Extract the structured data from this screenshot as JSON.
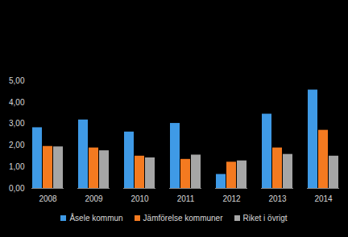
{
  "chart_data": {
    "type": "bar",
    "categories": [
      "2008",
      "2009",
      "2010",
      "2011",
      "2012",
      "2013",
      "2014"
    ],
    "series": [
      {
        "name": "Åsele kommun",
        "color": "#3f9ae6",
        "values": [
          2.82,
          3.18,
          2.62,
          3.02,
          0.65,
          3.45,
          4.57
        ]
      },
      {
        "name": "Jämförelse kommuner",
        "color": "#f47a20",
        "values": [
          1.95,
          1.88,
          1.5,
          1.35,
          1.22,
          1.88,
          2.7
        ]
      },
      {
        "name": "Riket i övrigt",
        "color": "#a6a6a6",
        "values": [
          1.93,
          1.75,
          1.42,
          1.55,
          1.28,
          1.58,
          1.5
        ]
      }
    ],
    "ylim": [
      0,
      5
    ],
    "yticks": [
      {
        "value": 0,
        "label": "0,00"
      },
      {
        "value": 1,
        "label": "1,00"
      },
      {
        "value": 2,
        "label": "2,00"
      },
      {
        "value": 3,
        "label": "3,00"
      },
      {
        "value": 4,
        "label": "4,00"
      },
      {
        "value": 5,
        "label": "5,00"
      }
    ],
    "grid": false,
    "legend": "bottom"
  }
}
